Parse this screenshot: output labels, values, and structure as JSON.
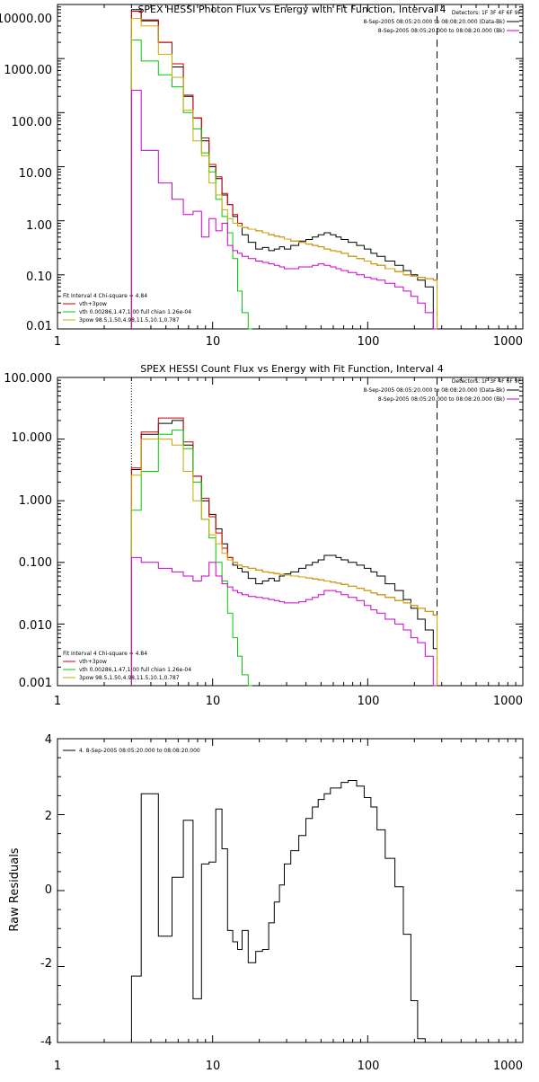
{
  "chart_data": [
    {
      "type": "line",
      "title": "SPEX HESSI Photon Flux vs Energy with Fit Function, Interval 4",
      "xscale": "log",
      "yscale": "log",
      "xlim": [
        1,
        1000
      ],
      "ylim": [
        0.01,
        10000
      ],
      "x_ticks": [
        "1",
        "10",
        "100",
        "1000"
      ],
      "y_ticks": [
        "10000.00",
        "1000.00",
        "100.00",
        "10.00",
        "1.00",
        "0.10",
        "0.01"
      ],
      "legend_topright": {
        "placement": "top-right",
        "lines": [
          {
            "text": "Detectors: 1F 3F 4F 6F 9F",
            "color": "#000000",
            "swatch": false
          },
          {
            "text": "8-Sep-2005 08:05:20.000 to 08:08:20.000 (Data-Bk)",
            "color": "#000000",
            "swatch": true
          },
          {
            "text": "8-Sep-2005 08:05:20.000 to 08:08:20.000 (Bk)",
            "color": "#cc00cc",
            "swatch": true
          }
        ]
      },
      "legend_bottomleft": {
        "placement": "bottom-left",
        "lines": [
          {
            "text": "Fit Interval 4   Chi-square = 4.84",
            "color": "#000000",
            "swatch": false
          },
          {
            "text": "vth+3pow",
            "color": "#cc0000",
            "swatch": true
          },
          {
            "text": "vth 0.00286,1.47,1.00  full chian 1.26e-04",
            "color": "#00cc00",
            "swatch": true
          },
          {
            "text": "3pow 98.5,1.50,4.98,11.5,10.1,0.787",
            "color": "#ccaa00",
            "swatch": true
          }
        ]
      },
      "vlines": [
        {
          "x": 3,
          "style": "dotted"
        },
        {
          "x": 280,
          "style": "dashed"
        }
      ],
      "series": [
        {
          "name": "8-Sep-2005 08:05:20.000 to 08:08:20.000 (Data-Bk)",
          "color": "#000000",
          "x": [
            3,
            4,
            5,
            6,
            7,
            8,
            9,
            10,
            11,
            12,
            13,
            14,
            15,
            16,
            18,
            20,
            22,
            24,
            26,
            28,
            30,
            34,
            38,
            42,
            46,
            50,
            55,
            60,
            65,
            70,
            80,
            90,
            100,
            110,
            120,
            140,
            160,
            180,
            200,
            220,
            250,
            280
          ],
          "y": [
            8000,
            5000,
            2000,
            700,
            200,
            80,
            30,
            10,
            6,
            3,
            2,
            1.2,
            0.8,
            0.55,
            0.4,
            0.3,
            0.32,
            0.28,
            0.3,
            0.33,
            0.3,
            0.35,
            0.42,
            0.45,
            0.5,
            0.55,
            0.6,
            0.55,
            0.5,
            0.45,
            0.4,
            0.35,
            0.3,
            0.25,
            0.22,
            0.18,
            0.15,
            0.12,
            0.1,
            0.08,
            0.06,
            0.01
          ]
        },
        {
          "name": "vth+3pow",
          "color": "#cc0000",
          "x": [
            3,
            4,
            5,
            6,
            7,
            8,
            9,
            10,
            11,
            12,
            13,
            14,
            15,
            16,
            18,
            20,
            22,
            24,
            26,
            28,
            30,
            34,
            38,
            42,
            46,
            50,
            55,
            60,
            65,
            70,
            80,
            90,
            100,
            110,
            120,
            140,
            160,
            180,
            200,
            220,
            250,
            280
          ],
          "y": [
            7500,
            5200,
            2000,
            800,
            210,
            80,
            34,
            11,
            6.5,
            3.2,
            2,
            1.3,
            0.9,
            0.75,
            0.7,
            0.65,
            0.6,
            0.55,
            0.52,
            0.5,
            0.46,
            0.42,
            0.4,
            0.37,
            0.35,
            0.33,
            0.3,
            0.28,
            0.27,
            0.25,
            0.22,
            0.2,
            0.18,
            0.16,
            0.15,
            0.13,
            0.115,
            0.1,
            0.095,
            0.09,
            0.085,
            0.08
          ]
        },
        {
          "name": "vth",
          "color": "#00cc00",
          "x": [
            3,
            4,
            5,
            6,
            7,
            8,
            9,
            10,
            11,
            12,
            13,
            14,
            15,
            16,
            18
          ],
          "y": [
            2200,
            900,
            500,
            300,
            100,
            50,
            18,
            8,
            2.5,
            1.2,
            0.6,
            0.2,
            0.05,
            0.02,
            0.01
          ]
        },
        {
          "name": "3pow",
          "color": "#ccaa00",
          "x": [
            3,
            4,
            5,
            6,
            7,
            8,
            9,
            10,
            11,
            12,
            13,
            14,
            15,
            16,
            18,
            20,
            22,
            24,
            26,
            28,
            30,
            34,
            38,
            42,
            46,
            50,
            55,
            60,
            65,
            70,
            80,
            90,
            100,
            110,
            120,
            140,
            160,
            180,
            200,
            220,
            250,
            280
          ],
          "y": [
            5500,
            4000,
            1200,
            450,
            110,
            30,
            16,
            5,
            3,
            1.6,
            1.1,
            0.9,
            0.8,
            0.75,
            0.7,
            0.65,
            0.6,
            0.55,
            0.52,
            0.5,
            0.46,
            0.42,
            0.4,
            0.37,
            0.35,
            0.33,
            0.3,
            0.28,
            0.27,
            0.25,
            0.22,
            0.2,
            0.18,
            0.16,
            0.15,
            0.13,
            0.115,
            0.1,
            0.095,
            0.09,
            0.085,
            0.08
          ]
        },
        {
          "name": "8-Sep-2005 08:05:20.000 to 08:08:20.000 (Bk)",
          "color": "#cc00cc",
          "x": [
            3,
            4,
            5,
            6,
            7,
            8,
            9,
            10,
            11,
            12,
            13,
            14,
            15,
            16,
            18,
            20,
            22,
            24,
            26,
            28,
            30,
            34,
            38,
            42,
            46,
            50,
            55,
            60,
            65,
            70,
            80,
            90,
            100,
            110,
            120,
            140,
            160,
            180,
            200,
            220,
            250,
            280
          ],
          "y": [
            260,
            20,
            5,
            2.5,
            1.3,
            1.5,
            0.5,
            1.1,
            0.65,
            0.9,
            0.35,
            0.28,
            0.25,
            0.22,
            0.2,
            0.18,
            0.17,
            0.16,
            0.15,
            0.14,
            0.13,
            0.13,
            0.14,
            0.14,
            0.15,
            0.16,
            0.15,
            0.14,
            0.13,
            0.12,
            0.11,
            0.1,
            0.09,
            0.085,
            0.08,
            0.07,
            0.06,
            0.05,
            0.04,
            0.03,
            0.02,
            0.01
          ]
        }
      ]
    },
    {
      "type": "line",
      "title": "SPEX HESSI Count Flux vs Energy with Fit Function, Interval 4",
      "xscale": "log",
      "yscale": "log",
      "xlim": [
        1,
        1000
      ],
      "ylim": [
        0.001,
        100
      ],
      "x_ticks": [
        "1",
        "10",
        "100",
        "1000"
      ],
      "y_ticks": [
        "100.000",
        "10.000",
        "1.000",
        "0.100",
        "0.010",
        "0.001"
      ],
      "legend_topright": {
        "placement": "top-right",
        "lines": [
          {
            "text": "Detectors: 1F 3F 4F 6F 9F",
            "color": "#000000",
            "swatch": false
          },
          {
            "text": "8-Sep-2005 08:05:20.000 to 08:08:20.000 (Data-Bk)",
            "color": "#000000",
            "swatch": true
          },
          {
            "text": "8-Sep-2005 08:05:20.000 to 08:08:20.000 (Bk)",
            "color": "#cc00cc",
            "swatch": true
          }
        ]
      },
      "legend_bottomleft": {
        "placement": "bottom-left",
        "lines": [
          {
            "text": "Fit Interval 4   Chi-square = 4.84",
            "color": "#000000",
            "swatch": false
          },
          {
            "text": "vth+3pow",
            "color": "#cc0000",
            "swatch": true
          },
          {
            "text": "vth 0.00286,1.47,1.00  full chian 1.26e-04",
            "color": "#00cc00",
            "swatch": true
          },
          {
            "text": "3pow 98.5,1.50,4.98,11.5,10.1,0.787",
            "color": "#ccaa00",
            "swatch": true
          }
        ]
      },
      "vlines": [
        {
          "x": 3,
          "style": "dotted"
        },
        {
          "x": 280,
          "style": "dashed"
        }
      ],
      "series": [
        {
          "name": "8-Sep-2005 08:05:20.000 to 08:08:20.000 (Data-Bk)",
          "color": "#000000",
          "x": [
            3,
            4,
            5,
            6,
            7,
            8,
            9,
            10,
            11,
            12,
            13,
            14,
            15,
            16,
            18,
            20,
            22,
            24,
            26,
            28,
            30,
            34,
            38,
            42,
            46,
            50,
            55,
            60,
            65,
            70,
            80,
            90,
            100,
            110,
            120,
            140,
            160,
            180,
            200,
            220,
            250,
            280
          ],
          "y": [
            3.2,
            12,
            18,
            20,
            8,
            2.5,
            1.0,
            0.6,
            0.35,
            0.2,
            0.12,
            0.09,
            0.08,
            0.07,
            0.055,
            0.045,
            0.05,
            0.055,
            0.05,
            0.06,
            0.065,
            0.07,
            0.08,
            0.09,
            0.1,
            0.11,
            0.13,
            0.13,
            0.12,
            0.11,
            0.1,
            0.09,
            0.08,
            0.07,
            0.06,
            0.045,
            0.035,
            0.025,
            0.018,
            0.012,
            0.008,
            0.004
          ]
        },
        {
          "name": "vth+3pow",
          "color": "#cc0000",
          "x": [
            3,
            4,
            5,
            6,
            7,
            8,
            9,
            10,
            11,
            12,
            13,
            14,
            15,
            16,
            18,
            20,
            22,
            24,
            26,
            28,
            30,
            34,
            38,
            42,
            46,
            50,
            55,
            60,
            65,
            70,
            80,
            90,
            100,
            110,
            120,
            140,
            160,
            180,
            200,
            220,
            250,
            280
          ],
          "y": [
            3.4,
            13,
            22,
            22,
            9,
            2.5,
            1.1,
            0.55,
            0.3,
            0.17,
            0.12,
            0.1,
            0.09,
            0.085,
            0.08,
            0.075,
            0.07,
            0.068,
            0.066,
            0.064,
            0.062,
            0.06,
            0.058,
            0.056,
            0.054,
            0.052,
            0.05,
            0.048,
            0.046,
            0.044,
            0.041,
            0.038,
            0.035,
            0.032,
            0.03,
            0.027,
            0.024,
            0.022,
            0.02,
            0.018,
            0.016,
            0.014
          ]
        },
        {
          "name": "vth",
          "color": "#00cc00",
          "x": [
            3,
            4,
            5,
            6,
            7,
            8,
            9,
            10,
            11,
            12,
            13,
            14,
            15,
            16,
            18
          ],
          "y": [
            0.7,
            3,
            12,
            14,
            7,
            2.0,
            0.5,
            0.25,
            0.1,
            0.05,
            0.015,
            0.006,
            0.003,
            0.0015,
            0.001
          ]
        },
        {
          "name": "3pow",
          "color": "#ccaa00",
          "x": [
            3,
            4,
            5,
            6,
            7,
            8,
            9,
            10,
            11,
            12,
            13,
            14,
            15,
            16,
            18,
            20,
            22,
            24,
            26,
            28,
            30,
            34,
            38,
            42,
            46,
            50,
            55,
            60,
            65,
            70,
            80,
            90,
            100,
            110,
            120,
            140,
            160,
            180,
            200,
            220,
            250,
            280
          ],
          "y": [
            2.6,
            10,
            10,
            8,
            3,
            1.0,
            0.5,
            0.28,
            0.2,
            0.14,
            0.11,
            0.1,
            0.09,
            0.085,
            0.08,
            0.075,
            0.07,
            0.068,
            0.066,
            0.064,
            0.062,
            0.06,
            0.058,
            0.056,
            0.054,
            0.052,
            0.05,
            0.048,
            0.046,
            0.044,
            0.041,
            0.038,
            0.035,
            0.032,
            0.03,
            0.027,
            0.024,
            0.022,
            0.02,
            0.018,
            0.016,
            0.014
          ]
        },
        {
          "name": "8-Sep-2005 08:05:20.000 to 08:08:20.000 (Bk)",
          "color": "#cc00cc",
          "x": [
            3,
            4,
            5,
            6,
            7,
            8,
            9,
            10,
            11,
            12,
            13,
            14,
            15,
            16,
            18,
            20,
            22,
            24,
            26,
            28,
            30,
            34,
            38,
            42,
            46,
            50,
            55,
            60,
            65,
            70,
            80,
            90,
            100,
            110,
            120,
            140,
            160,
            180,
            200,
            220,
            250,
            280
          ],
          "y": [
            0.12,
            0.1,
            0.08,
            0.07,
            0.06,
            0.05,
            0.06,
            0.1,
            0.06,
            0.045,
            0.04,
            0.035,
            0.032,
            0.03,
            0.028,
            0.027,
            0.026,
            0.025,
            0.024,
            0.023,
            0.022,
            0.022,
            0.023,
            0.025,
            0.027,
            0.03,
            0.035,
            0.035,
            0.033,
            0.03,
            0.027,
            0.024,
            0.02,
            0.017,
            0.015,
            0.012,
            0.01,
            0.008,
            0.006,
            0.005,
            0.003,
            0.001
          ]
        }
      ]
    },
    {
      "type": "line",
      "title": "",
      "xscale": "log",
      "yscale": "linear",
      "xlim": [
        1,
        1000
      ],
      "ylim": [
        -4,
        4
      ],
      "ylabel": "Raw Residuals",
      "x_ticks": [
        "1",
        "10",
        "100",
        "1000"
      ],
      "y_ticks": [
        "4",
        "2",
        "0",
        "-2",
        "-4"
      ],
      "legend_topleft": {
        "placement": "top-left",
        "lines": [
          {
            "text": "4.  8-Sep-2005 08:05:20.000 to 08:08:20.000",
            "color": "#000000",
            "swatch": true
          }
        ]
      },
      "series": [
        {
          "name": "4.  8-Sep-2005 08:05:20.000 to 08:08:20.000",
          "color": "#000000",
          "x": [
            3,
            4,
            5,
            6,
            7,
            8,
            9,
            10,
            11,
            12,
            13,
            14,
            15,
            16,
            18,
            20,
            22,
            24,
            26,
            28,
            30,
            34,
            38,
            42,
            46,
            50,
            55,
            60,
            65,
            70,
            80,
            90,
            100,
            110,
            120,
            140,
            160,
            180,
            200,
            220,
            250,
            280
          ],
          "y": [
            -2.25,
            2.55,
            -1.2,
            0.35,
            1.85,
            -2.85,
            0.7,
            0.75,
            2.15,
            1.1,
            -1.05,
            -1.35,
            -1.55,
            -1.05,
            -1.9,
            -1.6,
            -1.55,
            -0.85,
            -0.3,
            0.15,
            0.7,
            1.05,
            1.45,
            1.9,
            2.2,
            2.4,
            2.55,
            2.7,
            2.7,
            2.85,
            2.9,
            2.75,
            2.45,
            2.2,
            1.6,
            0.85,
            0.1,
            -1.15,
            -2.9,
            -3.9,
            -4.0,
            -4.0
          ]
        }
      ]
    }
  ]
}
